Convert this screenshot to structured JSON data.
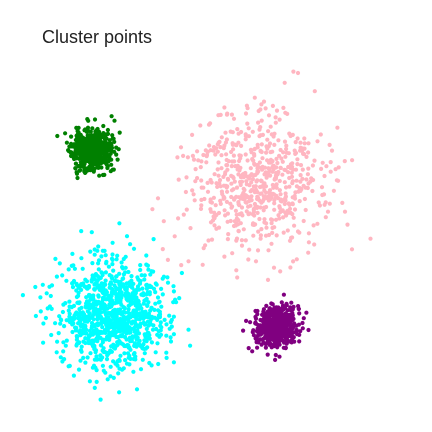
{
  "chart_data": {
    "type": "scatter",
    "title": "Cluster points",
    "xlabel": "",
    "ylabel": "",
    "xlim": [
      -1,
      21
    ],
    "ylim": [
      -1,
      21
    ],
    "axes_visible": false,
    "grid": false,
    "legend": "none",
    "series": [
      {
        "color": "#008000",
        "center": [
          3,
          13.7
        ],
        "spread": 0.55,
        "count": 600,
        "seed": 11
      },
      {
        "color": "#FFB6C1",
        "center": [
          12.2,
          11.8
        ],
        "spread": 1.9,
        "count": 650,
        "seed": 23
      },
      {
        "color": "#00FFFF",
        "center": [
          4.2,
          4.5
        ],
        "spread": 1.5,
        "count": 1000,
        "seed": 37
      },
      {
        "color": "#800080",
        "center": [
          13.4,
          3.8
        ],
        "spread": 0.55,
        "count": 600,
        "seed": 53
      }
    ]
  }
}
